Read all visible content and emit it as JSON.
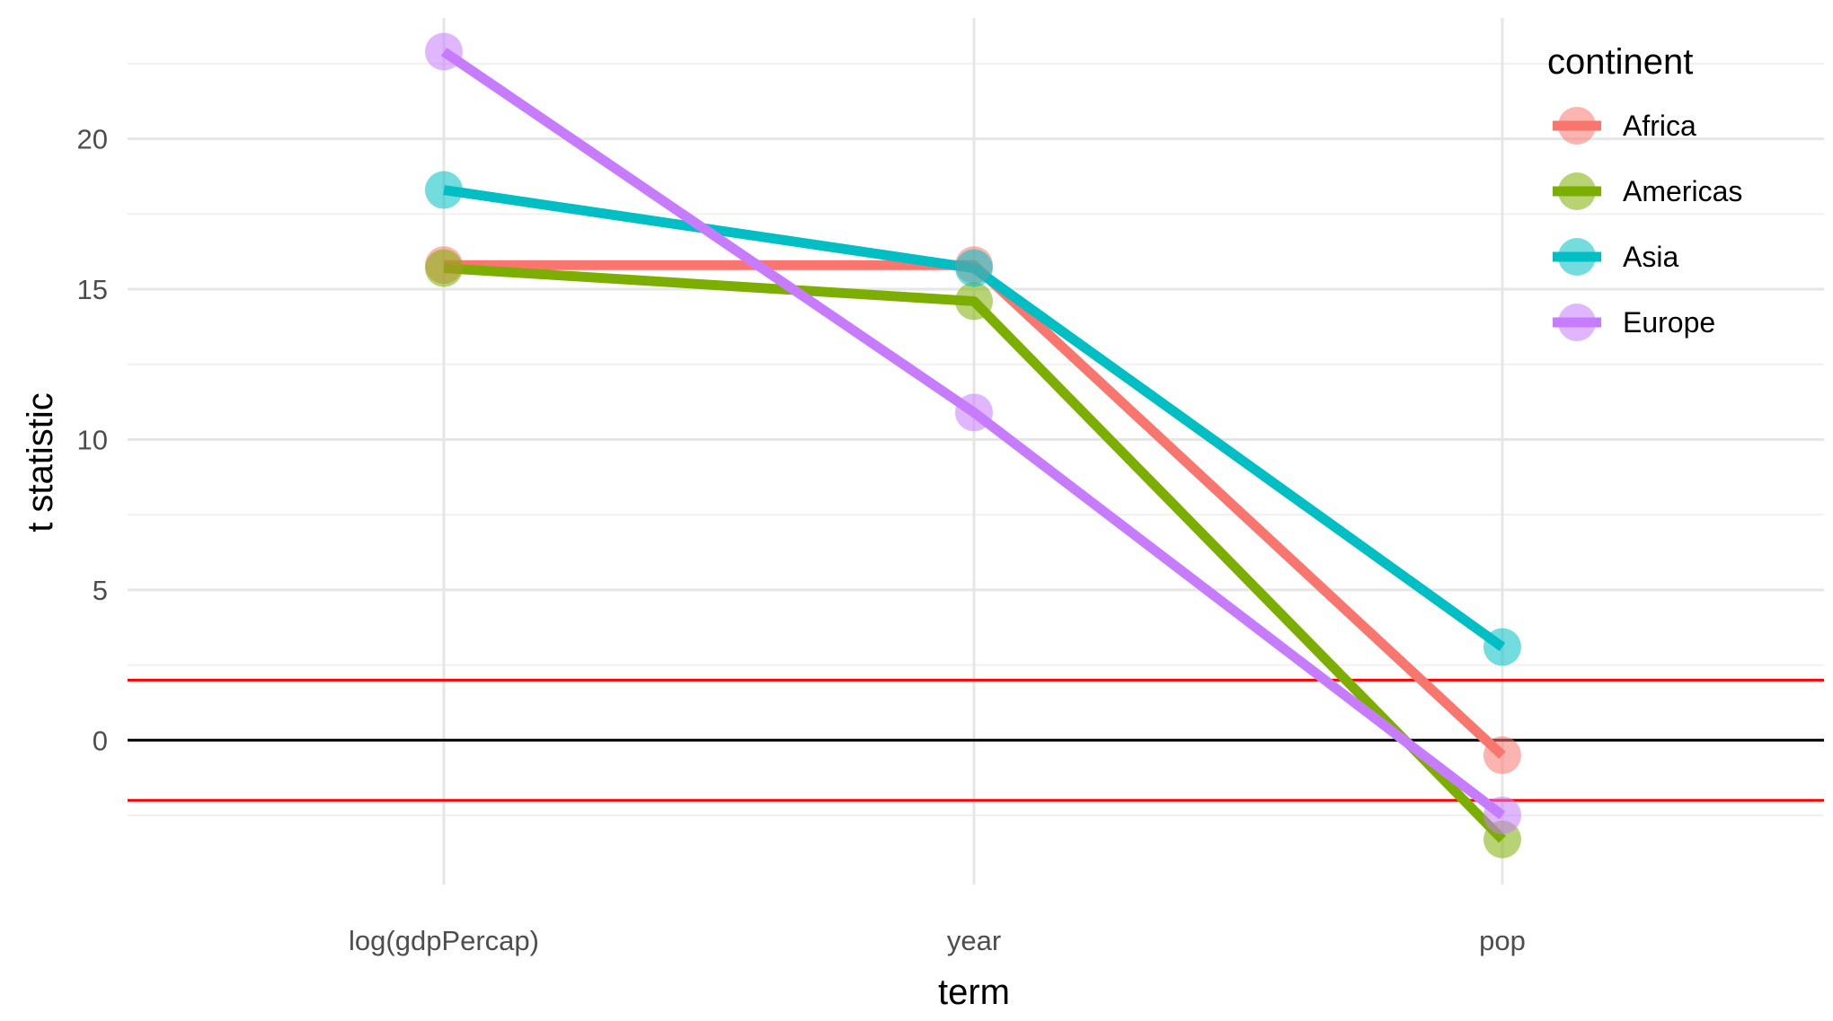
{
  "chart_data": {
    "type": "line",
    "title": "",
    "xlabel": "term",
    "ylabel": "t statistic",
    "categories": [
      "log(gdpPercap)",
      "year",
      "pop"
    ],
    "ylim": [
      -4.8,
      24.2
    ],
    "yticks": [
      0,
      5,
      10,
      15,
      20
    ],
    "grid": true,
    "legend": {
      "title": "continent",
      "position": "top-right"
    },
    "series": [
      {
        "name": "Africa",
        "color": "#F8766D",
        "values": [
          15.8,
          15.8,
          -0.5
        ]
      },
      {
        "name": "Americas",
        "color": "#7CAE00",
        "values": [
          15.7,
          14.6,
          -3.3
        ]
      },
      {
        "name": "Asia",
        "color": "#00BFC4",
        "values": [
          18.3,
          15.7,
          3.1
        ]
      },
      {
        "name": "Europe",
        "color": "#C77CFF",
        "values": [
          22.9,
          10.9,
          -2.5
        ]
      }
    ],
    "reference_lines": [
      {
        "y": 0,
        "color": "#000000"
      },
      {
        "y": 2,
        "color": "#FF0000"
      },
      {
        "y": -2,
        "color": "#FF0000"
      }
    ]
  }
}
